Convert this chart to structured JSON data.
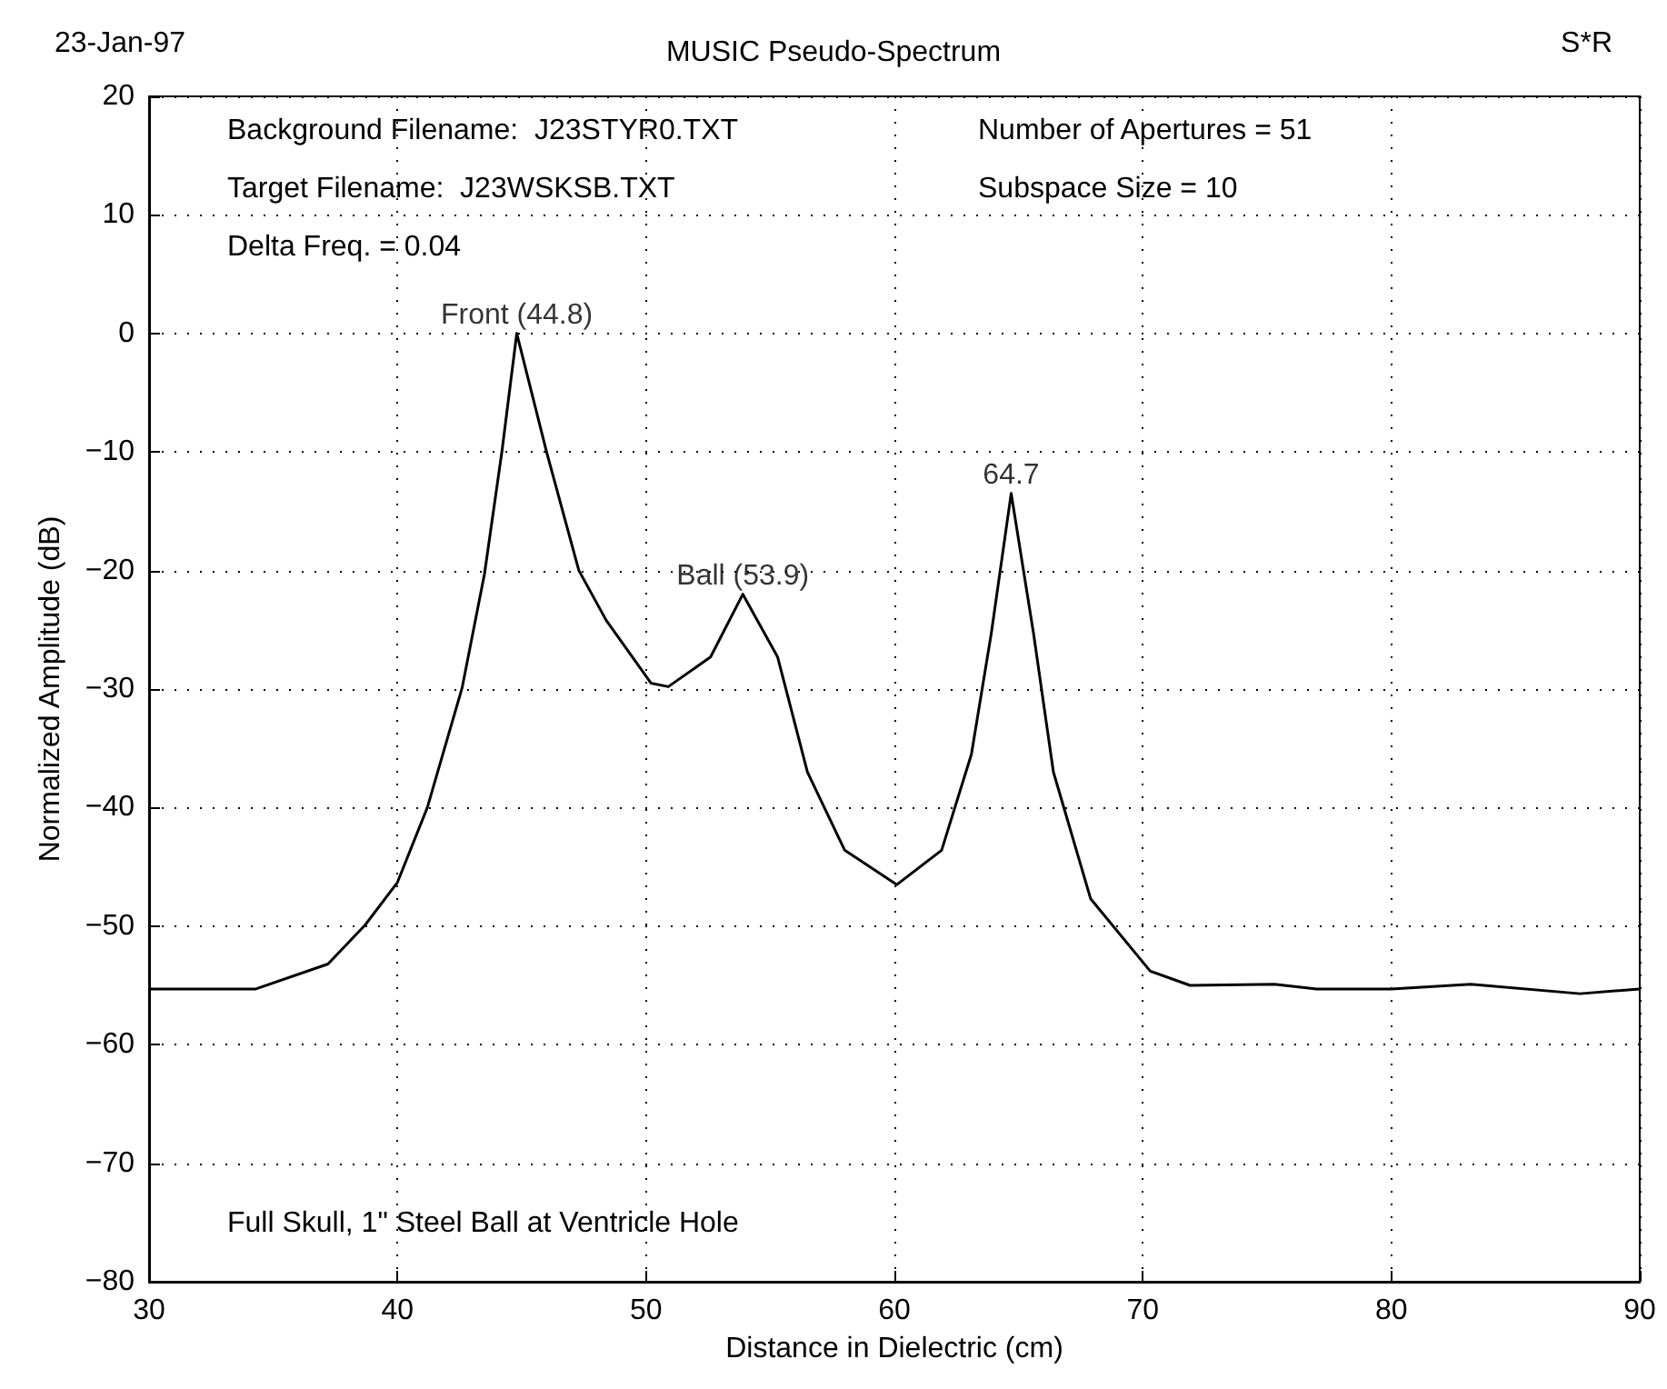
{
  "chart_data": {
    "type": "line",
    "title": "MUSIC Pseudo-Spectrum",
    "xlabel": "Distance in Dielectric (cm)",
    "ylabel": "Normalized Amplitude (dB)",
    "x": [
      30,
      34.3,
      37.2,
      38.7,
      40,
      41.2,
      42.6,
      43.5,
      44.2,
      44.8,
      46,
      47.3,
      48.4,
      50.2,
      50.9,
      52.6,
      53.9,
      55.3,
      56.5,
      58,
      60.1,
      61.9,
      63.1,
      63.9,
      64.7,
      65.6,
      66.4,
      67.9,
      70.3,
      71.9,
      75.3,
      77,
      80,
      83.2,
      87.6,
      90
    ],
    "series": [
      {
        "color": "#000000",
        "values": [
          -55.3,
          -55.3,
          -53.2,
          -49.9,
          -46.3,
          -40,
          -29.9,
          -20.3,
          -10,
          0,
          -10,
          -20,
          -24.2,
          -29.5,
          -29.8,
          -27.3,
          -22,
          -27.3,
          -37,
          -43.6,
          -46.5,
          -43.6,
          -35.5,
          -25.3,
          -13.5,
          -25.3,
          -37,
          -47.7,
          -53.8,
          -55,
          -54.9,
          -55.3,
          -55.3,
          -54.9,
          -55.7,
          -55.3
        ]
      }
    ],
    "xlim": [
      30,
      90
    ],
    "xticks": [
      30,
      40,
      50,
      60,
      70,
      80,
      90
    ],
    "ylim": [
      -80,
      20
    ],
    "yticks": [
      -80,
      -70,
      -60,
      -50,
      -40,
      -30,
      -20,
      -10,
      0,
      10,
      20
    ],
    "grid": true,
    "line_style": "solid",
    "marker": "none",
    "annotations": [
      "23-Jan-97",
      "S*R",
      "Background Filename:  J23STYR0.TXT",
      "Number of Apertures = 51",
      "Target Filename:  J23WSKSB.TXT",
      "Subspace Size = 10",
      "Delta Freq. = 0.04",
      "Full Skull, 1\" Steel Ball at Ventricle Hole",
      {
        "text": "Front (44.8)",
        "x": 44.8,
        "y": 0
      },
      {
        "text": "Ball (53.9)",
        "x": 53.9,
        "y": -22
      },
      {
        "text": "64.7",
        "x": 64.7,
        "y": -13.5
      }
    ]
  }
}
